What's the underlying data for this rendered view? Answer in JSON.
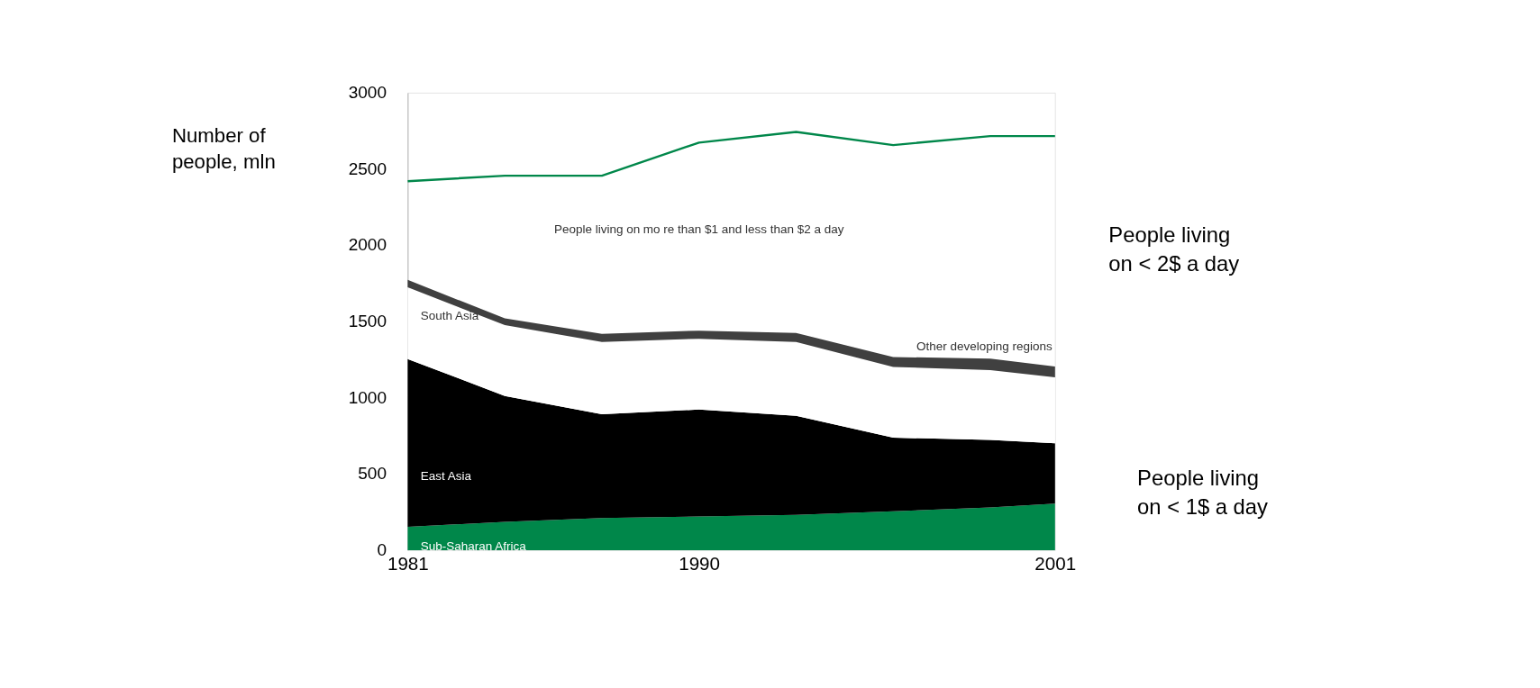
{
  "chart_data": {
    "type": "area",
    "stacked": true,
    "ylabel": "Number of people, mln",
    "x": [
      1981,
      1984,
      1987,
      1990,
      1993,
      1996,
      1999,
      2001
    ],
    "xlim": [
      1981,
      2001
    ],
    "xticks": [
      1981,
      1990,
      2001
    ],
    "ylim": [
      0,
      3000
    ],
    "yticks": [
      0,
      500,
      1000,
      1500,
      2000,
      2500,
      3000
    ],
    "grid": false,
    "legend": false,
    "series": [
      {
        "name": "Sub-Saharan Africa",
        "color": "#00874a",
        "values": [
          154,
          186,
          211,
          221,
          232,
          255,
          280,
          306
        ]
      },
      {
        "name": "East Asia",
        "color": "#000000",
        "values": [
          1100,
          826,
          681,
          702,
          649,
          483,
          443,
          396
        ]
      },
      {
        "name": "South Asia",
        "color": "#ffffff",
        "values": [
          471,
          464,
          474,
          464,
          485,
          464,
          458,
          432
        ]
      },
      {
        "name": "Other developing regions",
        "color": "#404040",
        "values": [
          48,
          44,
          53,
          53,
          59,
          65,
          76,
          70
        ]
      },
      {
        "color": "#00874a",
        "type": "line",
        "values": [
          2420,
          2456,
          2456,
          2673,
          2743,
          2657,
          2716,
          2716
        ]
      }
    ],
    "annotations": [
      "People living on mo re than $1 and less than $2 a day",
      "People living on < 2$ a day",
      "People living on < 1$ a day"
    ]
  }
}
